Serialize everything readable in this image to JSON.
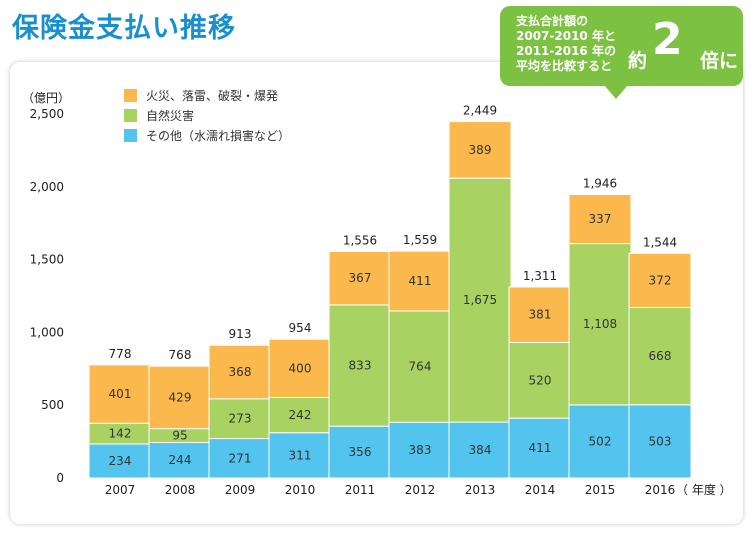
{
  "title": "保険金支払い推移",
  "callout": {
    "lines": [
      "支払合計額の",
      "2007-2010 年と",
      "2011-2016 年の",
      "平均を比較すると"
    ],
    "prefix": "約",
    "value": "2",
    "suffix": "倍に"
  },
  "chart_data": {
    "type": "bar",
    "stacked": true,
    "categories": [
      "2007",
      "2008",
      "2009",
      "2010",
      "2011",
      "2012",
      "2013",
      "2014",
      "2015",
      "2016"
    ],
    "series": [
      {
        "name": "その他（水濡れ損害など）",
        "color": "#53c4ee",
        "values": [
          234,
          244,
          271,
          311,
          356,
          383,
          384,
          411,
          502,
          503
        ]
      },
      {
        "name": "自然災害",
        "color": "#a8d363",
        "values": [
          142,
          95,
          273,
          242,
          833,
          764,
          1675,
          520,
          1108,
          668
        ]
      },
      {
        "name": "火災、落雷、破裂・爆発",
        "color": "#fbb94d",
        "values": [
          401,
          429,
          368,
          400,
          367,
          411,
          389,
          381,
          337,
          372
        ]
      }
    ],
    "totals": [
      "778",
      "768",
      "913",
      "954",
      "1,556",
      "1,559",
      "2,449",
      "1,311",
      "1,946",
      "1,544"
    ],
    "y_ticks": [
      "0",
      "500",
      "1,000",
      "1,500",
      "2,000",
      "2,500"
    ],
    "ylim": [
      0,
      2500
    ],
    "ylabel": "（億円）",
    "xlabel": "（ 年度 ）",
    "legend_order": [
      "火災、落雷、破裂・爆発",
      "自然災害",
      "その他（水濡れ損害など）"
    ],
    "legend_position": "top-left",
    "grid": false
  }
}
